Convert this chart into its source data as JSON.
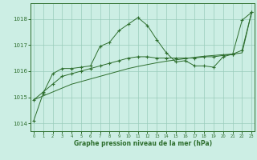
{
  "xlabel": "Graphe pression niveau de la mer (hPa)",
  "bg_color": "#cceee4",
  "grid_color": "#99ccbb",
  "line_color": "#2d6e2d",
  "x_ticks": [
    0,
    1,
    2,
    3,
    4,
    5,
    6,
    7,
    8,
    9,
    10,
    11,
    12,
    13,
    14,
    15,
    16,
    17,
    18,
    19,
    20,
    21,
    22,
    23
  ],
  "y_ticks": [
    1014,
    1015,
    1016,
    1017,
    1018
  ],
  "ylim": [
    1013.7,
    1018.6
  ],
  "xlim": [
    -0.3,
    23.3
  ],
  "line1": [
    1014.1,
    1015.15,
    1015.9,
    1016.1,
    1016.1,
    1016.15,
    1016.2,
    1016.95,
    1017.1,
    1017.55,
    1017.8,
    1018.05,
    1017.75,
    1017.2,
    1016.7,
    1016.35,
    1016.4,
    1016.2,
    1016.2,
    1016.15,
    1016.55,
    1016.65,
    1017.95,
    1018.25
  ],
  "line2": [
    1014.9,
    1015.2,
    1015.5,
    1015.8,
    1015.9,
    1016.0,
    1016.1,
    1016.2,
    1016.3,
    1016.4,
    1016.5,
    1016.55,
    1016.55,
    1016.5,
    1016.5,
    1016.5,
    1016.5,
    1016.5,
    1016.55,
    1016.55,
    1016.6,
    1016.65,
    1016.8,
    1018.25
  ],
  "line3": [
    1014.9,
    1015.05,
    1015.2,
    1015.35,
    1015.5,
    1015.6,
    1015.7,
    1015.8,
    1015.9,
    1016.0,
    1016.1,
    1016.18,
    1016.25,
    1016.32,
    1016.38,
    1016.43,
    1016.48,
    1016.53,
    1016.57,
    1016.6,
    1016.63,
    1016.65,
    1016.7,
    1018.25
  ]
}
